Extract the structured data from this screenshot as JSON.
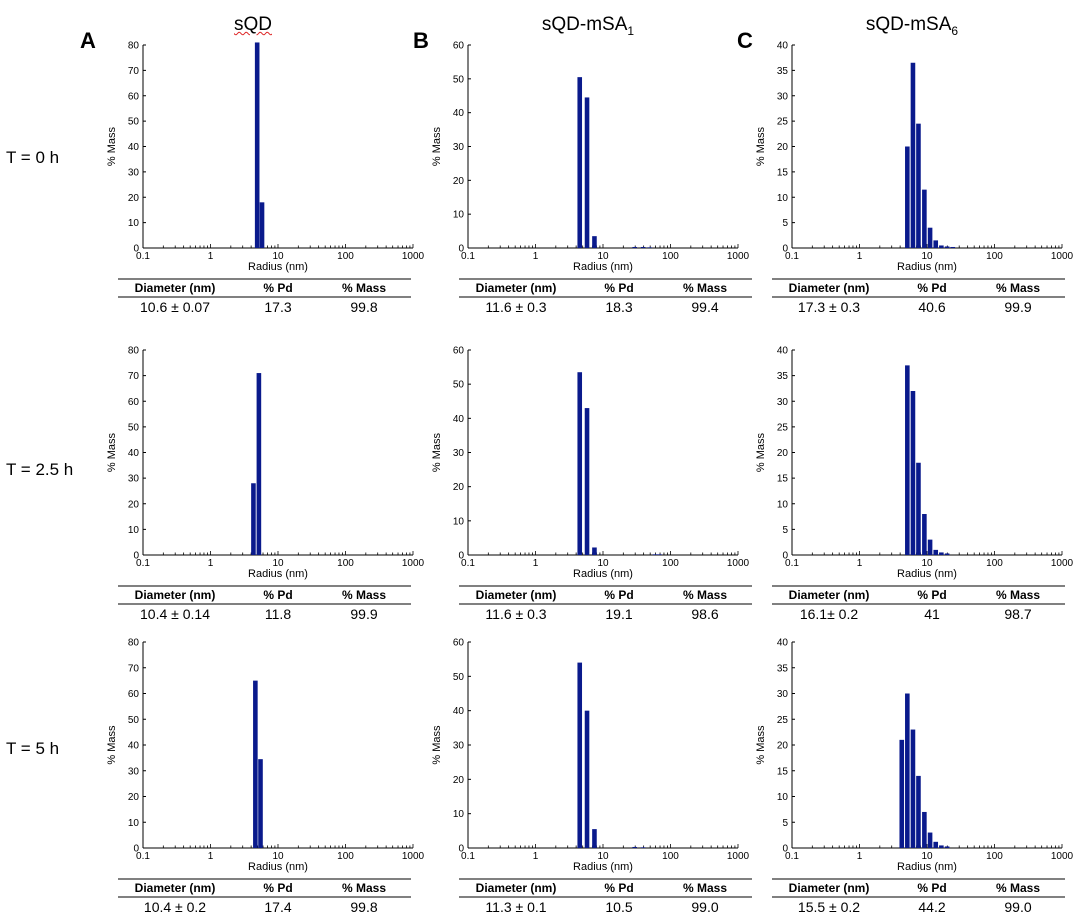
{
  "columns": [
    {
      "letter": "A",
      "title_main": "sQD",
      "title_sub": ""
    },
    {
      "letter": "B",
      "title_main": "sQD-mSA",
      "title_sub": "1"
    },
    {
      "letter": "C",
      "title_main": "sQD-mSA",
      "title_sub": "6"
    }
  ],
  "rows": [
    {
      "label": "T = 0 h"
    },
    {
      "label": "T = 2.5 h"
    },
    {
      "label": "T = 5 h"
    }
  ],
  "table_headers": [
    "Diameter (nm)",
    "% Pd",
    "% Mass"
  ],
  "colors": {
    "bar": "#0a1a8c",
    "axis": "#000000"
  },
  "chart_data": [
    {
      "type": "bar",
      "title": "sQD, T = 0 h",
      "xlabel": "Radius (nm)",
      "ylabel": "% Mass",
      "xscale": "log",
      "xlim": [
        0.1,
        1000
      ],
      "ylim": [
        0,
        80
      ],
      "yticks": [
        0,
        10,
        20,
        30,
        40,
        50,
        60,
        70,
        80
      ],
      "xticks": [
        "0.1",
        "1",
        "10",
        "100",
        "1000"
      ],
      "bars": [
        {
          "x": 5.0,
          "y": 81
        },
        {
          "x": 5.9,
          "y": 18
        }
      ],
      "table": {
        "diameter": "10.6 ± 0.07",
        "pd": "17.3",
        "mass": "99.8"
      }
    },
    {
      "type": "bar",
      "title": "sQD-mSA1, T = 0 h",
      "xlabel": "Radius (nm)",
      "ylabel": "% Mass",
      "xscale": "log",
      "xlim": [
        0.1,
        1000
      ],
      "ylim": [
        0,
        60
      ],
      "yticks": [
        0,
        10,
        20,
        30,
        40,
        50,
        60
      ],
      "xticks": [
        "0.1",
        "1",
        "10",
        "100",
        "1000"
      ],
      "bars": [
        {
          "x": 4.6,
          "y": 50.5
        },
        {
          "x": 5.9,
          "y": 44.5
        },
        {
          "x": 7.6,
          "y": 3.5
        },
        {
          "x": 30,
          "y": 0.3
        },
        {
          "x": 40,
          "y": 0.3
        },
        {
          "x": 50,
          "y": 0.2
        }
      ],
      "table": {
        "diameter": "11.6 ± 0.3",
        "pd": "18.3",
        "mass": "99.4"
      }
    },
    {
      "type": "bar",
      "title": "sQD-mSA6, T = 0 h",
      "xlabel": "Radius (nm)",
      "ylabel": "% Mass",
      "xscale": "log",
      "xlim": [
        0.1,
        1000
      ],
      "ylim": [
        0,
        40
      ],
      "yticks": [
        0,
        5,
        10,
        15,
        20,
        25,
        30,
        35,
        40
      ],
      "xticks": [
        "0.1",
        "1",
        "10",
        "100",
        "1000"
      ],
      "bars": [
        {
          "x": 5.2,
          "y": 20
        },
        {
          "x": 6.3,
          "y": 36.5
        },
        {
          "x": 7.6,
          "y": 24.5
        },
        {
          "x": 9.3,
          "y": 11.5
        },
        {
          "x": 11.3,
          "y": 4
        },
        {
          "x": 13.7,
          "y": 1.5
        },
        {
          "x": 16.6,
          "y": 0.5
        },
        {
          "x": 20.2,
          "y": 0.3
        },
        {
          "x": 24.5,
          "y": 0.2
        }
      ],
      "table": {
        "diameter": "17.3 ± 0.3",
        "pd": "40.6",
        "mass": "99.9"
      }
    },
    {
      "type": "bar",
      "title": "sQD, T = 2.5 h",
      "xlabel": "Radius (nm)",
      "ylabel": "% Mass",
      "xscale": "log",
      "xlim": [
        0.1,
        1000
      ],
      "ylim": [
        0,
        80
      ],
      "yticks": [
        0,
        10,
        20,
        30,
        40,
        50,
        60,
        70,
        80
      ],
      "xticks": [
        "0.1",
        "1",
        "10",
        "100",
        "1000"
      ],
      "bars": [
        {
          "x": 4.4,
          "y": 28
        },
        {
          "x": 5.3,
          "y": 71
        }
      ],
      "table": {
        "diameter": "10.4 ± 0.14",
        "pd": "11.8",
        "mass": "99.9"
      }
    },
    {
      "type": "bar",
      "title": "sQD-mSA1, T = 2.5 h",
      "xlabel": "Radius (nm)",
      "ylabel": "% Mass",
      "xscale": "log",
      "xlim": [
        0.1,
        1000
      ],
      "ylim": [
        0,
        60
      ],
      "yticks": [
        0,
        10,
        20,
        30,
        40,
        50,
        60
      ],
      "xticks": [
        "0.1",
        "1",
        "10",
        "100",
        "1000"
      ],
      "bars": [
        {
          "x": 4.6,
          "y": 53.5
        },
        {
          "x": 5.9,
          "y": 43
        },
        {
          "x": 7.6,
          "y": 2.2
        },
        {
          "x": 60,
          "y": 0.2
        },
        {
          "x": 70,
          "y": 0.2
        }
      ],
      "table": {
        "diameter": "11.6 ± 0.3",
        "pd": "19.1",
        "mass": "98.6"
      }
    },
    {
      "type": "bar",
      "title": "sQD-mSA6, T = 2.5 h",
      "xlabel": "Radius (nm)",
      "ylabel": "% Mass",
      "xscale": "log",
      "xlim": [
        0.1,
        1000
      ],
      "ylim": [
        0,
        40
      ],
      "yticks": [
        0,
        5,
        10,
        15,
        20,
        25,
        30,
        35,
        40
      ],
      "xticks": [
        "0.1",
        "1",
        "10",
        "100",
        "1000"
      ],
      "bars": [
        {
          "x": 5.2,
          "y": 37
        },
        {
          "x": 6.3,
          "y": 32
        },
        {
          "x": 7.6,
          "y": 18
        },
        {
          "x": 9.3,
          "y": 8
        },
        {
          "x": 11.3,
          "y": 3
        },
        {
          "x": 13.7,
          "y": 1
        },
        {
          "x": 16.6,
          "y": 0.5
        },
        {
          "x": 20.2,
          "y": 0.3
        }
      ],
      "table": {
        "diameter": "16.1± 0.2",
        "pd": "41",
        "mass": "98.7"
      }
    },
    {
      "type": "bar",
      "title": "sQD, T = 5 h",
      "xlabel": "Radius (nm)",
      "ylabel": "% Mass",
      "xscale": "log",
      "xlim": [
        0.1,
        1000
      ],
      "ylim": [
        0,
        80
      ],
      "yticks": [
        0,
        10,
        20,
        30,
        40,
        50,
        60,
        70,
        80
      ],
      "xticks": [
        "0.1",
        "1",
        "10",
        "100",
        "1000"
      ],
      "bars": [
        {
          "x": 4.7,
          "y": 65
        },
        {
          "x": 5.6,
          "y": 34.5
        }
      ],
      "table": {
        "diameter": "10.4 ± 0.2",
        "pd": "17.4",
        "mass": "99.8"
      }
    },
    {
      "type": "bar",
      "title": "sQD-mSA1, T = 5 h",
      "xlabel": "Radius (nm)",
      "ylabel": "% Mass",
      "xscale": "log",
      "xlim": [
        0.1,
        1000
      ],
      "ylim": [
        0,
        60
      ],
      "yticks": [
        0,
        10,
        20,
        30,
        40,
        50,
        60
      ],
      "xticks": [
        "0.1",
        "1",
        "10",
        "100",
        "1000"
      ],
      "bars": [
        {
          "x": 4.6,
          "y": 54
        },
        {
          "x": 5.9,
          "y": 40
        },
        {
          "x": 7.6,
          "y": 5.5
        },
        {
          "x": 30,
          "y": 0.3
        },
        {
          "x": 40,
          "y": 0.2
        }
      ],
      "table": {
        "diameter": "11.3 ± 0.1",
        "pd": "10.5",
        "mass": "99.0"
      }
    },
    {
      "type": "bar",
      "title": "sQD-mSA6, T = 5 h",
      "xlabel": "Radius (nm)",
      "ylabel": "% Mass",
      "xscale": "log",
      "xlim": [
        0.1,
        1000
      ],
      "ylim": [
        0,
        40
      ],
      "yticks": [
        0,
        5,
        10,
        15,
        20,
        25,
        30,
        35,
        40
      ],
      "xticks": [
        "0.1",
        "1",
        "10",
        "100",
        "1000"
      ],
      "bars": [
        {
          "x": 4.3,
          "y": 21
        },
        {
          "x": 5.2,
          "y": 30
        },
        {
          "x": 6.3,
          "y": 23
        },
        {
          "x": 7.6,
          "y": 14
        },
        {
          "x": 9.3,
          "y": 7
        },
        {
          "x": 11.3,
          "y": 3
        },
        {
          "x": 13.7,
          "y": 1.2
        },
        {
          "x": 16.6,
          "y": 0.5
        },
        {
          "x": 20.2,
          "y": 0.3
        }
      ],
      "table": {
        "diameter": "15.5 ± 0.2",
        "pd": "44.2",
        "mass": "99.0"
      }
    }
  ]
}
